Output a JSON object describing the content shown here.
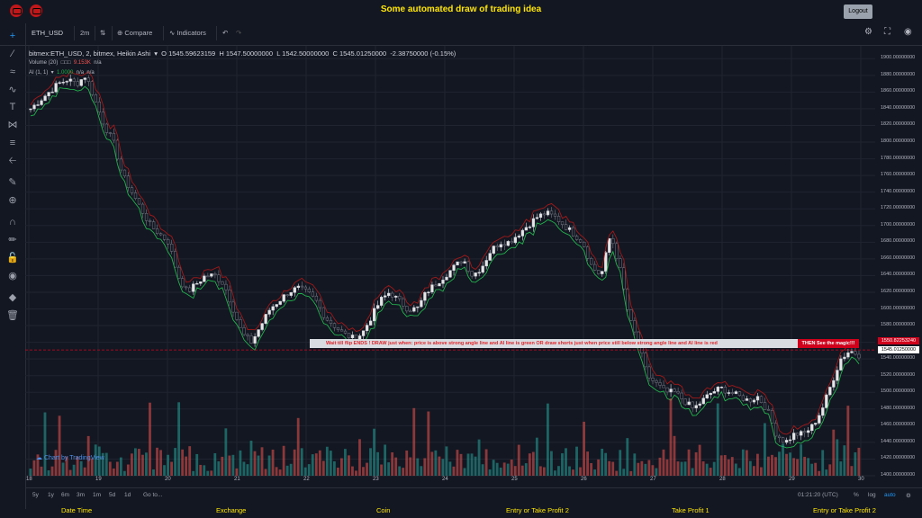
{
  "header": {
    "title": "Some automated draw of trading idea",
    "logout_label": "Logout"
  },
  "toolbar": {
    "symbol": "ETH_USD",
    "interval": "2m",
    "compare_label": "Compare",
    "indicators_label": "Indicators"
  },
  "legend": {
    "title": "bitmex:ETH_USD, 2, bitmex, Heikin Ashi",
    "open": "O 1545.59623159",
    "high": "H 1547.50000000",
    "low": "L 1542.50000000",
    "close": "C 1545.01250000",
    "change": "-2.38750000 (-0.15%)",
    "volume_label": "Volume (20)",
    "volume_value": "9.153K",
    "volume_na": "n/a",
    "ai_label": "AI (1, 1)",
    "ai_value": "1.0000",
    "ai_na1": "n/a",
    "ai_na2": "n/a"
  },
  "price_axis": [
    "1900.00000000",
    "1880.00000000",
    "1860.00000000",
    "1840.00000000",
    "1820.00000000",
    "1800.00000000",
    "1780.00000000",
    "1760.00000000",
    "1740.00000000",
    "1720.00000000",
    "1700.00000000",
    "1680.00000000",
    "1660.00000000",
    "1640.00000000",
    "1620.00000000",
    "1600.00000000",
    "1580.00000000",
    "1560.00000000",
    "1540.00000000",
    "1520.00000000",
    "1500.00000000",
    "1480.00000000",
    "1460.00000000",
    "1440.00000000",
    "1420.00000000",
    "1400.00000000"
  ],
  "price_tags": {
    "red": "1550.82253240",
    "white": "1545.01250000"
  },
  "time_axis": [
    "18",
    "19",
    "20",
    "21",
    "22",
    "23",
    "24",
    "25",
    "26",
    "27",
    "28",
    "29",
    "30"
  ],
  "banner": {
    "text": "Wait till flip ENDS  !   DRAW just when:  price is above strong angle line and AI line is green          OR          draw shorts just when price still below strong angle line and AI line is red",
    "cta": "THEN See the magic!!!"
  },
  "watermark": "Chart by TradingView",
  "bottom": {
    "ranges": [
      "5y",
      "1y",
      "6m",
      "3m",
      "1m",
      "5d",
      "1d"
    ],
    "goto": "Go to...",
    "time": "01:21:20 (UTC)",
    "pct": "%",
    "log": "log",
    "auto": "auto"
  },
  "footer": [
    "Date Time",
    "Exchange",
    "Coin",
    "Entry or Take Profit 2",
    "Take Profit 1",
    "Entry or Take Profit 2"
  ],
  "colors": {
    "bg": "#131722",
    "up": "#26a69a",
    "down": "#ef5350",
    "title": "#ffe600",
    "ai_green": "#22b14c",
    "ai_red": "#a01919"
  },
  "chart_data": {
    "type": "candlestick",
    "ylim": [
      1400,
      1910
    ],
    "x": [
      "18",
      "19",
      "20",
      "21",
      "22",
      "23",
      "24",
      "25",
      "26",
      "27",
      "28",
      "29",
      "30"
    ],
    "price_path": [
      1840,
      1850,
      1860,
      1870,
      1875,
      1870,
      1880,
      1850,
      1820,
      1800,
      1760,
      1740,
      1720,
      1700,
      1690,
      1680,
      1640,
      1620,
      1630,
      1640,
      1640,
      1630,
      1600,
      1570,
      1560,
      1580,
      1600,
      1610,
      1620,
      1625,
      1620,
      1610,
      1590,
      1580,
      1570,
      1565,
      1570,
      1590,
      1610,
      1620,
      1610,
      1600,
      1600,
      1620,
      1630,
      1640,
      1650,
      1660,
      1640,
      1650,
      1670,
      1680,
      1680,
      1690,
      1700,
      1710,
      1715,
      1710,
      1700,
      1690,
      1680,
      1650,
      1640,
      1690,
      1650,
      1590,
      1560,
      1520,
      1510,
      1500,
      1500,
      1490,
      1480,
      1490,
      1500,
      1505,
      1500,
      1495,
      1490,
      1495,
      1480,
      1450,
      1440,
      1450,
      1450,
      1460,
      1480,
      1510,
      1540,
      1550,
      1545
    ],
    "volume_max": "9.153K"
  }
}
